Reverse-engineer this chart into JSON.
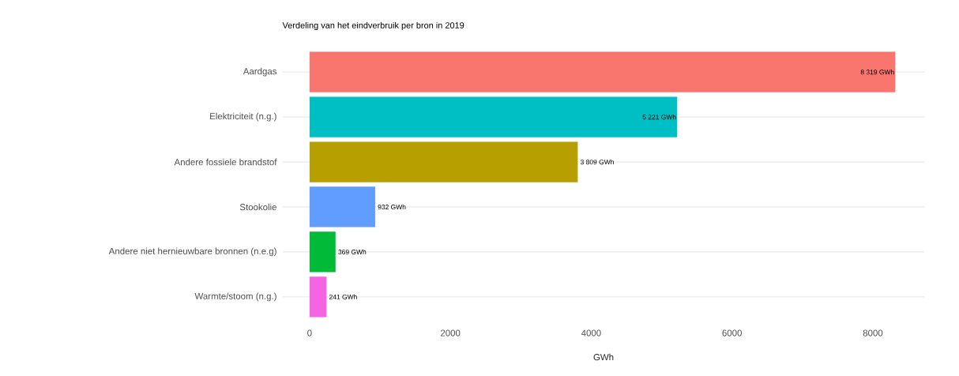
{
  "chart_data": {
    "type": "bar",
    "orientation": "horizontal",
    "title": "Verdeling van het eindverbruik per bron in 2019",
    "xlabel": "GWh",
    "categories": [
      "Aardgas",
      "Elektriciteit (n.g.)",
      "Andere fossiele brandstof",
      "Stookolie",
      "Andere niet hernieuwbare bronnen (n.e.g)",
      "Warmte/stoom (n.g.)"
    ],
    "values": [
      8319,
      5221,
      3809,
      932,
      369,
      241
    ],
    "colors": [
      "#f8766d",
      "#00bfc4",
      "#b79f00",
      "#619cff",
      "#00ba38",
      "#f564e3"
    ],
    "value_labels": [
      "8 319 GWh",
      "5 221 GWh",
      "3 809 GWh",
      "932 GWh",
      "369 GWh",
      "241 GWh"
    ],
    "xlim": [
      -380,
      8730
    ],
    "xticks": [
      0,
      2000,
      4000,
      6000,
      8000
    ],
    "grid": "y"
  }
}
